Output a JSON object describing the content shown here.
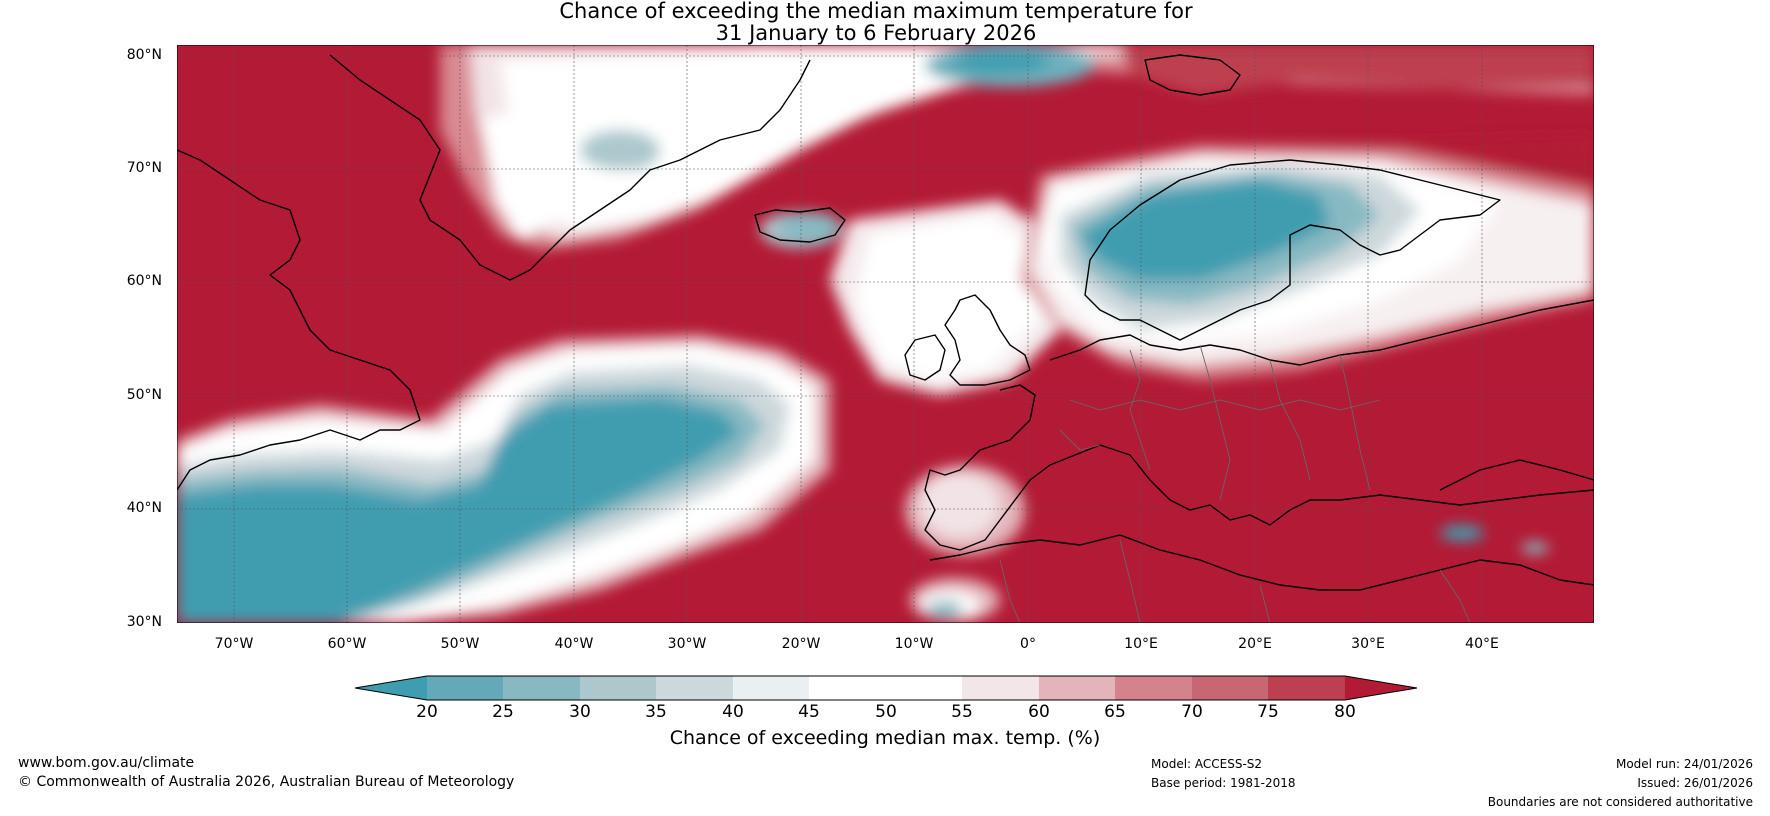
{
  "title": {
    "line1": "Chance of exceeding the median maximum temperature for",
    "line2": "31 January to 6 February 2026"
  },
  "map": {
    "lat_labels": [
      "80°N",
      "70°N",
      "60°N",
      "50°N",
      "40°N",
      "30°N"
    ],
    "lon_labels": [
      "70°W",
      "60°W",
      "50°W",
      "40°W",
      "30°W",
      "20°W",
      "10°W",
      "0°",
      "10°E",
      "20°E",
      "30°E",
      "40°E"
    ],
    "extent": {
      "lon_min": -75,
      "lon_max": 50,
      "lat_min": 30,
      "lat_max": 81
    },
    "background_color": "#b31a35"
  },
  "colorbar": {
    "ticks": [
      "20",
      "25",
      "30",
      "35",
      "40",
      "45",
      "50",
      "55",
      "60",
      "65",
      "70",
      "75",
      "80"
    ],
    "colors": [
      "#3f9db0",
      "#63a9b8",
      "#88b9c3",
      "#acc8cd",
      "#cdd8dc",
      "#eaf0f2",
      "#ffffff",
      "#ffffff",
      "#f3e6e8",
      "#e3b5bb",
      "#d4838d",
      "#c86773",
      "#be3f50",
      "#b31a35"
    ],
    "label": "Chance of exceeding median max. temp. (%)"
  },
  "footer": {
    "website": "www.bom.gov.au/climate",
    "copyright": "© Commonwealth of Australia 2026, Australian Bureau of Meteorology",
    "model": "Model: ACCESS-S2",
    "base_period": "Base period: 1981-2018",
    "model_run": "Model run: 24/01/2026",
    "issued": "Issued: 26/01/2026",
    "disclaimer": "Boundaries are not considered authoritative"
  }
}
